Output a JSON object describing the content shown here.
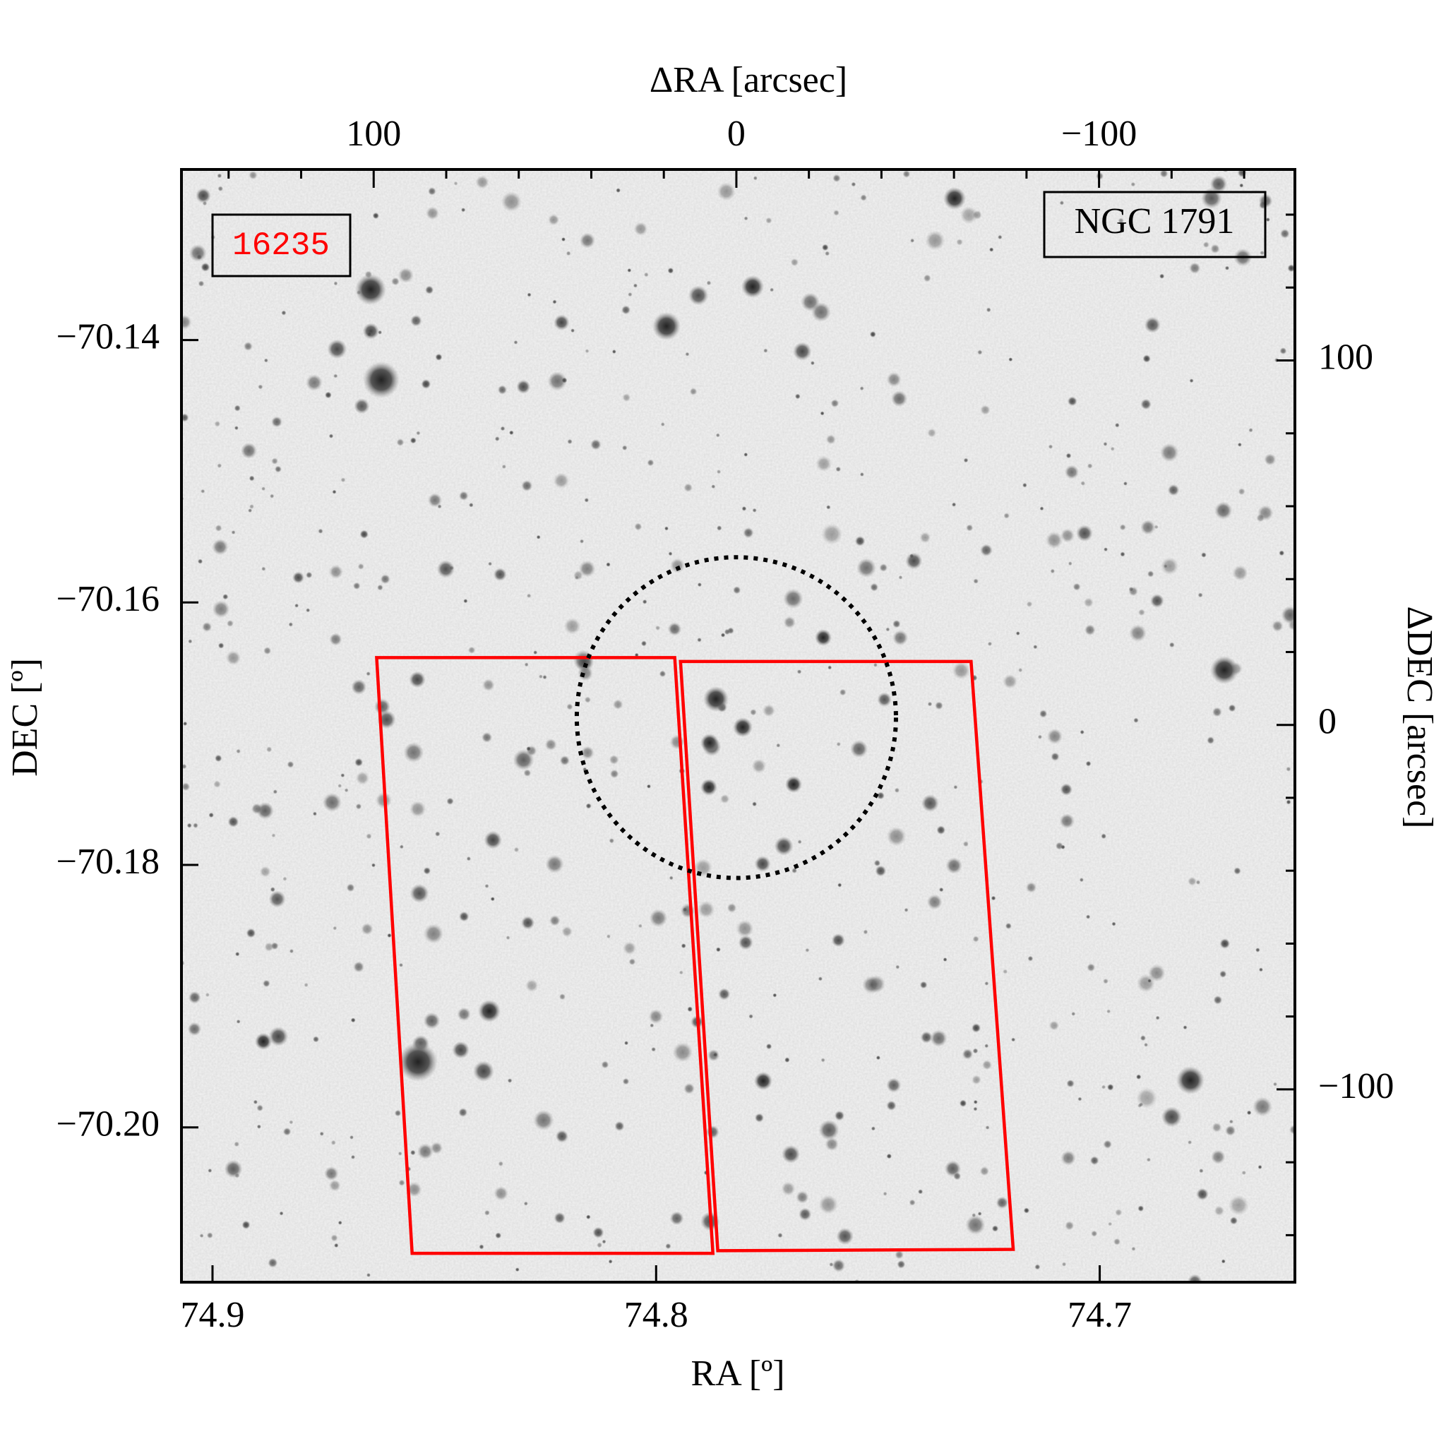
{
  "chart_data": {
    "type": "footprint",
    "xlabel": "RA [º]",
    "ylabel": "DEC [º]",
    "x2label": "ΔRA [arcsec]",
    "y2label": "ΔDEC [arcsec]",
    "xlim": [
      74.907,
      74.656
    ],
    "xticks": [
      74.9,
      74.8,
      74.7
    ],
    "ylim": [
      -70.2118,
      -70.127
    ],
    "yticks": [
      {
        "value": -70.14,
        "label": "−70.14"
      },
      {
        "value": -70.16,
        "label": "−70.16"
      },
      {
        "value": -70.18,
        "label": "−70.18"
      },
      {
        "value": -70.2,
        "label": "−70.20"
      }
    ],
    "x2lim": [
      153,
      -154
    ],
    "x2ticks": [
      100,
      0,
      {
        "value": -100,
        "label": "−100"
      }
    ],
    "x2minorticks": [
      140,
      120,
      80,
      60,
      40,
      20,
      -20,
      -40,
      -60,
      -80,
      -120,
      -140
    ],
    "y2lim": [
      -152.9,
      152.4
    ],
    "y2ticks": [
      100,
      0,
      {
        "value": -100,
        "label": "−100"
      }
    ],
    "y2minorticks": [
      140,
      120,
      80,
      60,
      40,
      20,
      -20,
      -40,
      -60,
      -80,
      -120,
      -140
    ],
    "annotations": [
      {
        "text": "16235",
        "color": "#ff0000"
      },
      {
        "text": "NGC 1791",
        "color": "#000000"
      }
    ],
    "footprints": {
      "color": "#ff0000",
      "ra": [
        [
          74.863,
          74.7958,
          74.7872,
          74.855
        ],
        [
          74.7945,
          74.729,
          74.7195,
          74.7861
        ]
      ],
      "dec": [
        [
          -70.1642,
          -70.1642,
          -70.2096,
          -70.2096
        ],
        [
          -70.1645,
          -70.1645,
          -70.2093,
          -70.2094
        ]
      ]
    },
    "circle": {
      "x": 0,
      "y": 2,
      "r": 44,
      "color": "#000000"
    }
  }
}
